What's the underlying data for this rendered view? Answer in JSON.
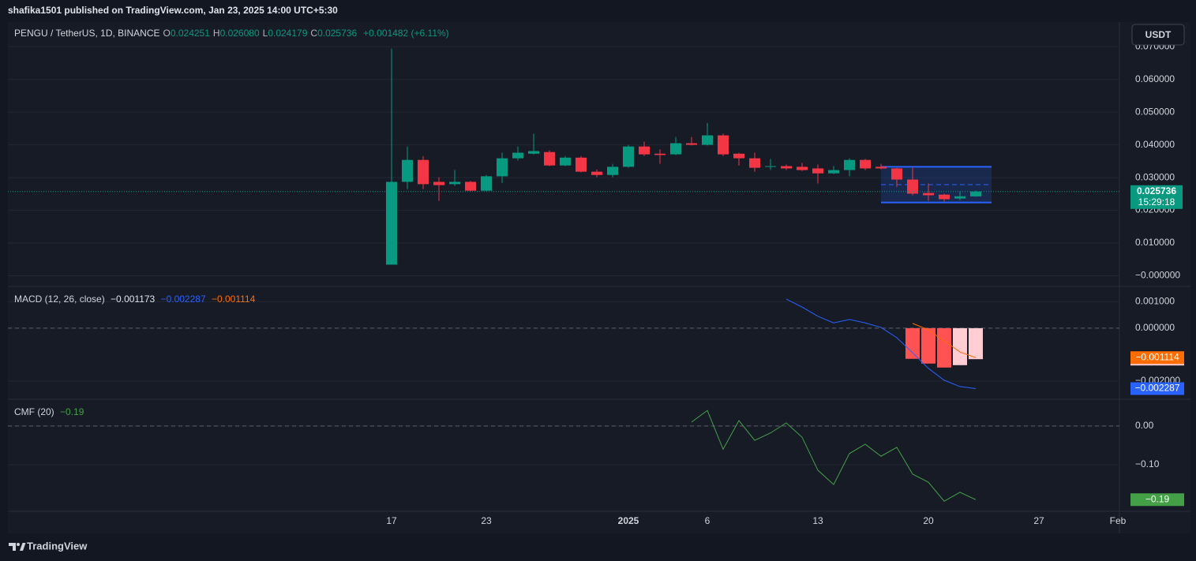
{
  "header": {
    "publisher": "shafika1501 published on TradingView.com, Jan 23, 2025 14:00 UTC+5:30",
    "currency": "USDT"
  },
  "footer": {
    "brand": "TradingView"
  },
  "chart_data": [
    {
      "type": "candlestick",
      "title": "PENGU / TetherUS, 1D, BINANCE",
      "legend": [
        {
          "key": "O",
          "text": "0.024251"
        },
        {
          "key": "H",
          "text": "0.026080"
        },
        {
          "key": "L",
          "text": "0.024179"
        },
        {
          "key": "C",
          "text": "0.025736"
        }
      ],
      "change": "+0.001482 (+6.11%)",
      "x": [
        "2024-12-17",
        "2024-12-18",
        "2024-12-19",
        "2024-12-20",
        "2024-12-21",
        "2024-12-22",
        "2024-12-23",
        "2024-12-24",
        "2024-12-25",
        "2024-12-26",
        "2024-12-27",
        "2024-12-28",
        "2024-12-29",
        "2024-12-30",
        "2024-12-31",
        "2025-01-01",
        "2025-01-02",
        "2025-01-03",
        "2025-01-04",
        "2025-01-05",
        "2025-01-06",
        "2025-01-07",
        "2025-01-08",
        "2025-01-09",
        "2025-01-10",
        "2025-01-11",
        "2025-01-12",
        "2025-01-13",
        "2025-01-14",
        "2025-01-15",
        "2025-01-16",
        "2025-01-17",
        "2025-01-18",
        "2025-01-19",
        "2025-01-20",
        "2025-01-21",
        "2025-01-22",
        "2025-01-23"
      ],
      "open": [
        0.0034,
        0.0287,
        0.0354,
        0.0287,
        0.028,
        0.0287,
        0.026,
        0.0304,
        0.0359,
        0.0373,
        0.0378,
        0.0337,
        0.0361,
        0.0318,
        0.0308,
        0.0333,
        0.0395,
        0.0373,
        0.0371,
        0.0405,
        0.04,
        0.0429,
        0.0373,
        0.0359,
        0.0333,
        0.0335,
        0.0333,
        0.0328,
        0.0313,
        0.0323,
        0.0354,
        0.0333,
        0.0328,
        0.0294,
        0.0253,
        0.0248,
        0.0236,
        0.024251
      ],
      "high": [
        0.0694,
        0.0395,
        0.0366,
        0.0301,
        0.0323,
        0.029,
        0.0308,
        0.0376,
        0.0395,
        0.0434,
        0.0383,
        0.0366,
        0.0366,
        0.0325,
        0.0342,
        0.04,
        0.041,
        0.0386,
        0.0424,
        0.0424,
        0.0467,
        0.0434,
        0.0376,
        0.0376,
        0.0357,
        0.034,
        0.0345,
        0.034,
        0.0335,
        0.0359,
        0.0357,
        0.0342,
        0.033,
        0.033,
        0.0282,
        0.0251,
        0.0258,
        0.02608
      ],
      "low": [
        0.0034,
        0.0265,
        0.0265,
        0.0229,
        0.0275,
        0.0258,
        0.0258,
        0.0284,
        0.0352,
        0.0371,
        0.0335,
        0.0335,
        0.0316,
        0.0301,
        0.0301,
        0.033,
        0.0366,
        0.0342,
        0.0369,
        0.0398,
        0.0398,
        0.0366,
        0.0337,
        0.0318,
        0.0323,
        0.0323,
        0.032,
        0.0282,
        0.0311,
        0.0304,
        0.0323,
        0.0325,
        0.0272,
        0.0246,
        0.0229,
        0.0227,
        0.0231,
        0.024179
      ],
      "close": [
        0.0287,
        0.0354,
        0.028,
        0.0277,
        0.0287,
        0.026,
        0.0304,
        0.0359,
        0.0376,
        0.0381,
        0.0337,
        0.0361,
        0.0318,
        0.0308,
        0.0333,
        0.0395,
        0.0371,
        0.0369,
        0.0405,
        0.04,
        0.0429,
        0.0371,
        0.0359,
        0.033,
        0.0335,
        0.0328,
        0.0323,
        0.0313,
        0.0323,
        0.0354,
        0.0328,
        0.0328,
        0.0294,
        0.0251,
        0.0246,
        0.0234,
        0.0243,
        0.025736
      ],
      "up_color": "#089981",
      "down_color": "#f23645",
      "last_price": {
        "value": 0.025736,
        "label": "0.025736"
      },
      "countdown": "15:29:18",
      "rectangle": {
        "start": "2025-01-17",
        "end": "2025-01-24",
        "top": 0.0333,
        "bottom": 0.0224,
        "color": "#2962ff"
      },
      "xlim": [
        "2024-11-23",
        "2025-02-01"
      ],
      "xticks": [
        {
          "value": "2024-12-17",
          "label": "17"
        },
        {
          "value": "2024-12-23",
          "label": "23"
        },
        {
          "value": "2025-01-01",
          "label": "2025"
        },
        {
          "value": "2025-01-06",
          "label": "6"
        },
        {
          "value": "2025-01-13",
          "label": "13"
        },
        {
          "value": "2025-01-20",
          "label": "20"
        },
        {
          "value": "2025-01-27",
          "label": "27"
        },
        {
          "value": "2025-02-01",
          "label": "Feb"
        }
      ],
      "ylim": [
        -0.003,
        0.0775
      ],
      "yticks": [
        {
          "value": 0,
          "label": "−0.000000"
        },
        {
          "value": 0.01,
          "label": "0.010000"
        },
        {
          "value": 0.02,
          "label": "0.020000"
        },
        {
          "value": 0.03,
          "label": "0.030000"
        },
        {
          "value": 0.04,
          "label": "0.040000"
        },
        {
          "value": 0.05,
          "label": "0.050000"
        },
        {
          "value": 0.06,
          "label": "0.060000"
        },
        {
          "value": 0.07,
          "label": "0.070000"
        }
      ],
      "grid": true
    },
    {
      "type": "macd",
      "title": "MACD (12, 26, close)",
      "x": [
        "2025-01-11",
        "2025-01-12",
        "2025-01-13",
        "2025-01-14",
        "2025-01-15",
        "2025-01-16",
        "2025-01-17",
        "2025-01-18",
        "2025-01-19",
        "2025-01-20",
        "2025-01-21",
        "2025-01-22",
        "2025-01-23"
      ],
      "series": [
        {
          "name": "Histogram",
          "kind": "bars",
          "values": [
            null,
            null,
            null,
            null,
            null,
            null,
            null,
            null,
            -0.00116,
            -0.00134,
            -0.00149,
            -0.0014,
            -0.001173
          ],
          "colors": [
            null,
            null,
            null,
            null,
            null,
            null,
            null,
            null,
            "#ff5252",
            "#ff5252",
            "#ff5252",
            "#ffcdd2",
            "#ffcdd2"
          ],
          "color": "#ffcdd2",
          "last_label": "−0.001173"
        },
        {
          "name": "MACD",
          "kind": "line",
          "values": [
            0.0011,
            0.0008,
            0.00045,
            0.0002,
            0.00033,
            0.0002,
            3e-05,
            -0.00036,
            -0.00093,
            -0.00152,
            -0.00197,
            -0.00221,
            -0.002287
          ],
          "color": "#2962ff",
          "last_label": "−0.002287"
        },
        {
          "name": "Signal",
          "kind": "line",
          "values": [
            null,
            null,
            null,
            null,
            null,
            null,
            null,
            null,
            0.00018,
            -6e-05,
            -0.00048,
            -0.0009,
            -0.001114
          ],
          "color": "#ff6d00",
          "last_label": "−0.001114"
        }
      ],
      "ylim": [
        -0.00266,
        0.00158
      ],
      "yticks": [
        {
          "value": -0.002,
          "label": "−0.002000"
        },
        {
          "value": 0,
          "label": "0.000000"
        },
        {
          "value": 0.001,
          "label": "0.001000"
        }
      ],
      "grid": true
    },
    {
      "type": "line",
      "title": "CMF (20)",
      "x": [
        "2025-01-05",
        "2025-01-06",
        "2025-01-07",
        "2025-01-08",
        "2025-01-09",
        "2025-01-10",
        "2025-01-11",
        "2025-01-12",
        "2025-01-13",
        "2025-01-14",
        "2025-01-15",
        "2025-01-16",
        "2025-01-17",
        "2025-01-18",
        "2025-01-19",
        "2025-01-20",
        "2025-01-21",
        "2025-01-22",
        "2025-01-23"
      ],
      "series": [
        {
          "name": "CMF",
          "values": [
            0.01,
            0.04,
            -0.06,
            0.014,
            -0.037,
            -0.018,
            0.008,
            -0.029,
            -0.114,
            -0.151,
            -0.071,
            -0.047,
            -0.078,
            -0.055,
            -0.124,
            -0.145,
            -0.194,
            -0.171,
            -0.19
          ],
          "color": "#43a047",
          "last_label": "−0.19"
        }
      ],
      "ylim": [
        -0.22,
        0.069
      ],
      "yticks": [
        {
          "value": -0.1,
          "label": "−0.10"
        },
        {
          "value": 0,
          "label": "0.00"
        }
      ],
      "grid": true
    }
  ]
}
